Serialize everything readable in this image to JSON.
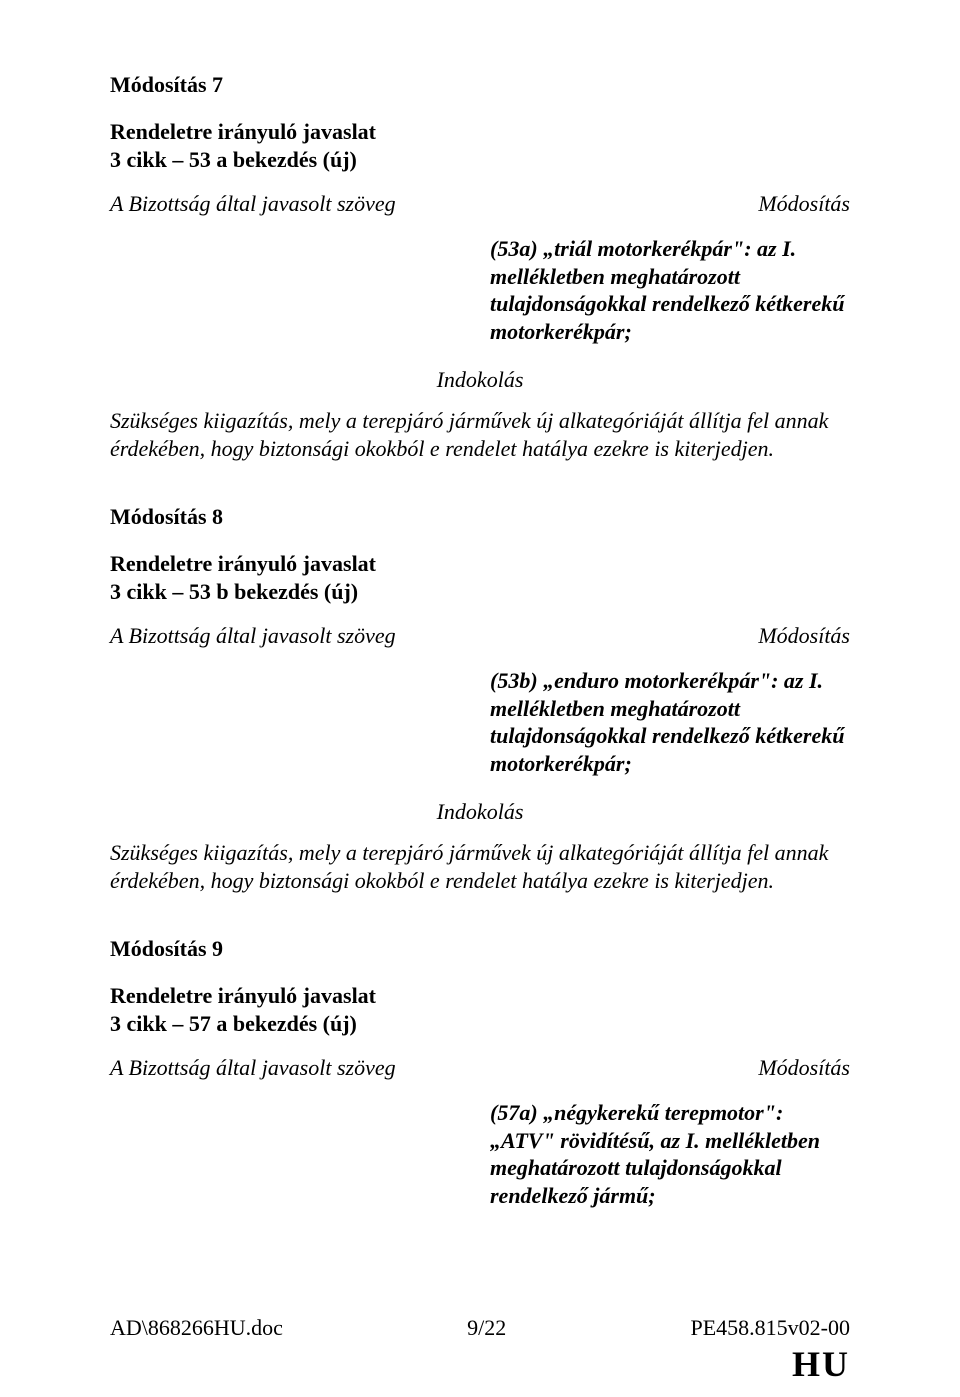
{
  "colors": {
    "text": "#000000",
    "background": "#ffffff"
  },
  "typography": {
    "family": "Times New Roman",
    "base_size_pt": 12,
    "heading_weight": "bold"
  },
  "mod7": {
    "title": "Módosítás 7",
    "sub_line1": "Rendeletre irányuló javaslat",
    "sub_line2": "3 cikk – 53 a bekezdés (új)",
    "left_label": "A Bizottság által javasolt szöveg",
    "right_label": "Módosítás",
    "right_text": "(53a) „triál motorkerékpár\": az I. mellékletben meghatározott tulajdonságokkal rendelkező kétkerekű motorkerékpár;",
    "indokolas": "Indokolás",
    "para": "Szükséges kiigazítás, mely a terepjáró járművek új alkategóriáját állítja fel annak érdekében, hogy biztonsági okokból e rendelet hatálya ezekre is kiterjedjen."
  },
  "mod8": {
    "title": "Módosítás 8",
    "sub_line1": "Rendeletre irányuló javaslat",
    "sub_line2": "3 cikk – 53 b bekezdés (új)",
    "left_label": "A Bizottság által javasolt szöveg",
    "right_label": "Módosítás",
    "right_text": "(53b) „enduro motorkerékpár\": az I. mellékletben meghatározott tulajdonságokkal rendelkező kétkerekű motorkerékpár;",
    "indokolas": "Indokolás",
    "para": "Szükséges kiigazítás, mely a terepjáró járművek új alkategóriáját állítja fel annak érdekében, hogy biztonsági okokból e rendelet hatálya ezekre is kiterjedjen."
  },
  "mod9": {
    "title": "Módosítás 9",
    "sub_line1": "Rendeletre irányuló javaslat",
    "sub_line2": "3 cikk – 57 a bekezdés (új)",
    "left_label": "A Bizottság által javasolt szöveg",
    "right_label": "Módosítás",
    "right_text": "(57a) „négykerekű terepmotor\": „ATV\" rövidítésű, az I. mellékletben meghatározott tulajdonságokkal rendelkező jármű;"
  },
  "footer": {
    "left": "AD\\868266HU.doc",
    "center": "9/22",
    "right": "PE458.815v02-00"
  },
  "hu": "HU"
}
